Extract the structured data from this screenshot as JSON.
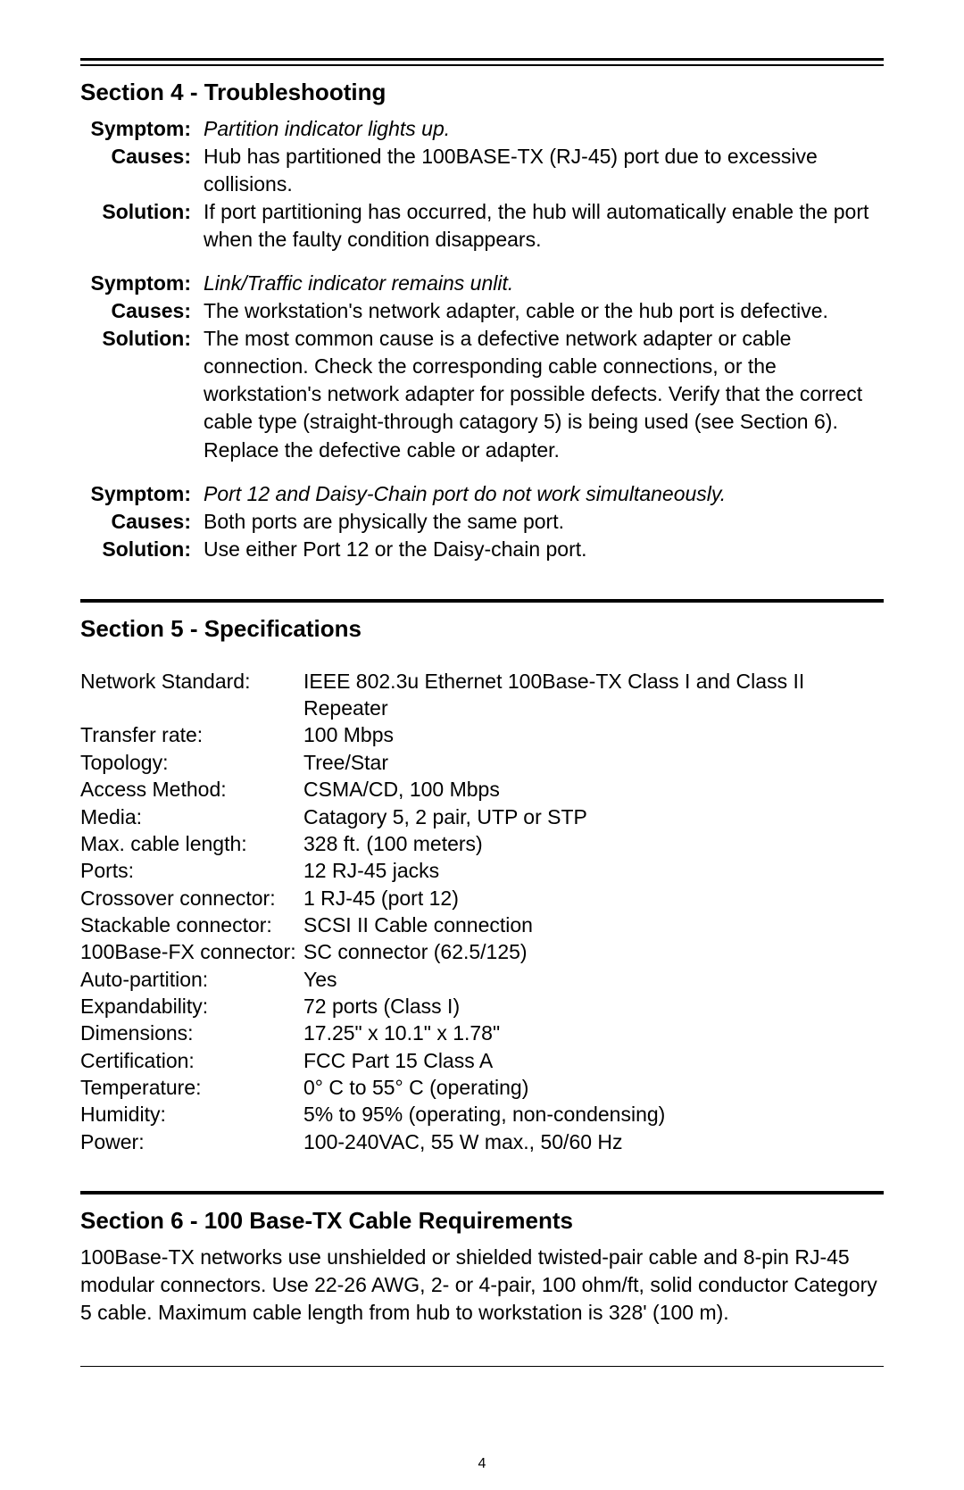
{
  "section4": {
    "title": "Section 4 - Troubleshooting",
    "labels": {
      "symptom": "Symptom:",
      "causes": "Causes:",
      "solution": "Solution:"
    },
    "items": [
      {
        "symptom": "Partition indicator lights up.",
        "causes": "Hub has partitioned the 100BASE-TX (RJ-45) port due to excessive collisions.",
        "solution": "If port partitioning has occurred, the hub will automatically enable the port when the faulty condition disappears."
      },
      {
        "symptom": "Link/Traffic indicator remains unlit.",
        "causes": "The workstation's network adapter, cable or the hub port is defective.",
        "solution": "The most common cause is a defective network adapter or cable connection. Check the corresponding cable connections, or the workstation's network adapter for possible defects. Verify that the correct cable type (straight-through catagory 5) is being used (see Section 6). Replace the defective cable or adapter."
      },
      {
        "symptom": "Port 12 and Daisy-Chain port do not work simultaneously.",
        "causes": "Both ports are physically the same port.",
        "solution": "Use either Port 12 or the Daisy-chain port."
      }
    ]
  },
  "section5": {
    "title": "Section 5 - Specifications",
    "specs": [
      {
        "label": "Network Standard:",
        "value": "IEEE 802.3u Ethernet 100Base-TX Class I and Class II Repeater"
      },
      {
        "label": "Transfer rate:",
        "value": "100 Mbps"
      },
      {
        "label": "Topology:",
        "value": "Tree/Star"
      },
      {
        "label": "Access Method:",
        "value": "CSMA/CD, 100 Mbps"
      },
      {
        "label": "Media:",
        "value": "Catagory 5, 2 pair, UTP or STP"
      },
      {
        "label": "Max. cable length:",
        "value": "328 ft. (100 meters)"
      },
      {
        "label": "Ports:",
        "value": "12 RJ-45 jacks"
      },
      {
        "label": "Crossover connector:",
        "value": "1 RJ-45 (port 12)"
      },
      {
        "label": "Stackable connector:",
        "value": "SCSI II Cable connection"
      },
      {
        "label": "100Base-FX connector:",
        "value": "SC connector (62.5/125)"
      },
      {
        "label": "Auto-partition:",
        "value": "Yes"
      },
      {
        "label": "Expandability:",
        "value": "72 ports (Class I)"
      },
      {
        "label": "Dimensions:",
        "value": "17.25\" x 10.1\" x 1.78\""
      },
      {
        "label": "Certification:",
        "value": "FCC Part 15 Class A"
      },
      {
        "label": "Temperature:",
        "value": "0° C to 55° C (operating)"
      },
      {
        "label": "Humidity:",
        "value": "5% to 95% (operating, non-condensing)"
      },
      {
        "label": "Power:",
        "value": "100-240VAC, 55 W max., 50/60 Hz"
      }
    ]
  },
  "section6": {
    "title": "Section 6 - 100 Base-TX Cable Requirements",
    "body": "100Base-TX networks use unshielded or shielded twisted-pair cable and 8-pin RJ-45 modular connectors. Use 22-26 AWG, 2- or 4-pair, 100 ohm/ft, solid conductor Category 5 cable. Maximum cable length from hub to workstation is 328' (100 m)."
  },
  "page_number": "4"
}
